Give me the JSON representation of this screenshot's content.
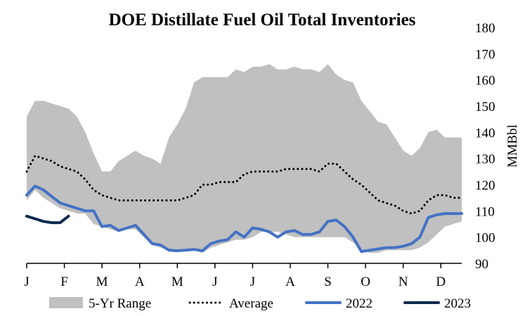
{
  "chart_data": {
    "type": "area",
    "title": "DOE Distillate Fuel Oil Total Inventories",
    "ylabel": "MMBbl",
    "xlabel": "",
    "ylim": [
      90,
      180
    ],
    "yticks": [
      90,
      100,
      110,
      120,
      130,
      140,
      150,
      160,
      170,
      180
    ],
    "y_axis_position": "right",
    "xlim": [
      1,
      53
    ],
    "x_unit": "week of year",
    "month_labels": [
      "J",
      "F",
      "M",
      "A",
      "M",
      "J",
      "J",
      "A",
      "S",
      "O",
      "N",
      "D"
    ],
    "month_start_weeks": [
      1,
      5.5,
      10,
      14.5,
      19,
      23.5,
      28,
      32.5,
      37,
      41.5,
      46,
      50.5
    ],
    "grid": false,
    "legend_position": "bottom",
    "colors": {
      "range_fill": "#c0c0c0",
      "average": "#000000",
      "y2022": "#4472c4",
      "y2023": "#0f2a4d"
    },
    "legend": [
      {
        "key": "range",
        "label": "5-Yr Range"
      },
      {
        "key": "average",
        "label": "Average"
      },
      {
        "key": "y2022",
        "label": "2022"
      },
      {
        "key": "y2023",
        "label": "2023"
      }
    ],
    "series": [
      {
        "name": "5-Yr Range",
        "x": [
          1,
          2,
          3,
          4,
          5,
          6,
          7,
          8,
          9,
          10,
          11,
          12,
          13,
          14,
          15,
          16,
          17,
          18,
          19,
          20,
          21,
          22,
          23,
          24,
          25,
          26,
          27,
          28,
          29,
          30,
          31,
          32,
          33,
          34,
          35,
          36,
          37,
          38,
          39,
          40,
          41,
          42,
          43,
          44,
          45,
          46,
          47,
          48,
          49,
          50,
          51,
          52,
          53
        ],
        "low": [
          114,
          118,
          115,
          113,
          111,
          110,
          109,
          109,
          105,
          104,
          103,
          102,
          103,
          103,
          100,
          97,
          96,
          95,
          95,
          95,
          95,
          94,
          96,
          97,
          98,
          99,
          99,
          100,
          102,
          102,
          102,
          101,
          100,
          100,
          100,
          100,
          100,
          100,
          100,
          98,
          95,
          94,
          94,
          95,
          95,
          95,
          95,
          96,
          98,
          101,
          104,
          105,
          106
        ],
        "high": [
          146,
          152,
          152,
          151,
          150,
          149,
          146,
          140,
          132,
          125,
          125,
          129,
          131,
          133,
          131,
          130,
          128,
          138,
          143,
          149,
          159,
          161,
          161,
          161,
          161,
          164,
          163,
          165,
          165,
          166,
          164,
          164,
          165,
          164,
          164,
          163,
          166,
          162,
          160,
          159,
          152,
          148,
          144,
          143,
          138,
          133,
          131,
          134,
          140,
          141,
          138,
          138,
          138
        ]
      },
      {
        "name": "Average",
        "x": [
          1,
          2,
          3,
          4,
          5,
          6,
          7,
          8,
          9,
          10,
          11,
          12,
          13,
          14,
          15,
          16,
          17,
          18,
          19,
          20,
          21,
          22,
          23,
          24,
          25,
          26,
          27,
          28,
          29,
          30,
          31,
          32,
          33,
          34,
          35,
          36,
          37,
          38,
          39,
          40,
          41,
          42,
          43,
          44,
          45,
          46,
          47,
          48,
          49,
          50,
          51,
          52,
          53
        ],
        "values": [
          125,
          131,
          130,
          129,
          127,
          126,
          125,
          122,
          118,
          116,
          115,
          114,
          114,
          114,
          114,
          114,
          114,
          114,
          114,
          115,
          116,
          120,
          120,
          121,
          121,
          121,
          124,
          125,
          125,
          125,
          125,
          126,
          126,
          126,
          126,
          125,
          128,
          128,
          125,
          122,
          120,
          117,
          114,
          113,
          112,
          110,
          109,
          110,
          114,
          116,
          116,
          115,
          115
        ]
      },
      {
        "name": "2022",
        "x": [
          1,
          2,
          3,
          4,
          5,
          6,
          7,
          8,
          9,
          10,
          11,
          12,
          13,
          14,
          15,
          16,
          17,
          18,
          19,
          20,
          21,
          22,
          23,
          24,
          25,
          26,
          27,
          28,
          29,
          30,
          31,
          32,
          33,
          34,
          35,
          36,
          37,
          38,
          39,
          40,
          41,
          42,
          43,
          44,
          45,
          46,
          47,
          48,
          49,
          50,
          51,
          52,
          53
        ],
        "values": [
          116,
          119.5,
          118,
          115.5,
          113,
          112,
          111,
          110,
          110,
          104,
          104.5,
          102.5,
          103.5,
          104.5,
          101,
          97.5,
          97,
          95,
          94.8,
          95,
          95.3,
          94.8,
          97.5,
          98.5,
          99,
          102,
          100,
          103.5,
          103,
          102,
          100,
          102,
          102.5,
          101,
          101,
          102,
          106,
          106.5,
          104,
          100,
          94.5,
          95,
          95.5,
          96,
          96,
          96.5,
          97.5,
          100,
          107.5,
          108.5,
          109,
          109,
          109
        ]
      },
      {
        "name": "2023",
        "x": [
          1,
          2,
          3,
          4,
          5,
          6
        ],
        "values": [
          108,
          107,
          106,
          105.5,
          105.5,
          108
        ]
      }
    ]
  }
}
